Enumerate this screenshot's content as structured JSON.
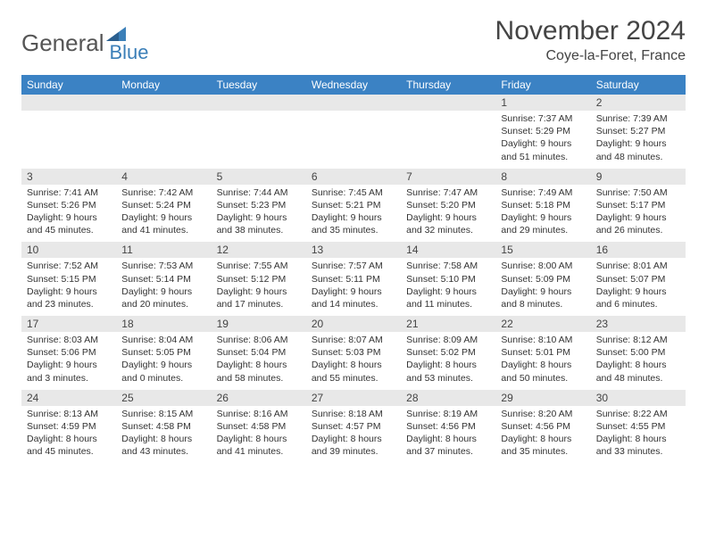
{
  "logo": {
    "text1": "General",
    "text2": "Blue"
  },
  "title": "November 2024",
  "location": "Coye-la-Foret, France",
  "colors": {
    "header_bg": "#3b82c4",
    "header_text": "#ffffff",
    "daynum_bg": "#e8e8e8",
    "text": "#333333",
    "logo_gray": "#555555",
    "logo_blue": "#3b7fb8"
  },
  "weekdays": [
    "Sunday",
    "Monday",
    "Tuesday",
    "Wednesday",
    "Thursday",
    "Friday",
    "Saturday"
  ],
  "weeks": [
    {
      "nums": [
        "",
        "",
        "",
        "",
        "",
        "1",
        "2"
      ],
      "cells": [
        {
          "sunrise": "",
          "sunset": "",
          "daylight": ""
        },
        {
          "sunrise": "",
          "sunset": "",
          "daylight": ""
        },
        {
          "sunrise": "",
          "sunset": "",
          "daylight": ""
        },
        {
          "sunrise": "",
          "sunset": "",
          "daylight": ""
        },
        {
          "sunrise": "",
          "sunset": "",
          "daylight": ""
        },
        {
          "sunrise": "Sunrise: 7:37 AM",
          "sunset": "Sunset: 5:29 PM",
          "daylight": "Daylight: 9 hours and 51 minutes."
        },
        {
          "sunrise": "Sunrise: 7:39 AM",
          "sunset": "Sunset: 5:27 PM",
          "daylight": "Daylight: 9 hours and 48 minutes."
        }
      ]
    },
    {
      "nums": [
        "3",
        "4",
        "5",
        "6",
        "7",
        "8",
        "9"
      ],
      "cells": [
        {
          "sunrise": "Sunrise: 7:41 AM",
          "sunset": "Sunset: 5:26 PM",
          "daylight": "Daylight: 9 hours and 45 minutes."
        },
        {
          "sunrise": "Sunrise: 7:42 AM",
          "sunset": "Sunset: 5:24 PM",
          "daylight": "Daylight: 9 hours and 41 minutes."
        },
        {
          "sunrise": "Sunrise: 7:44 AM",
          "sunset": "Sunset: 5:23 PM",
          "daylight": "Daylight: 9 hours and 38 minutes."
        },
        {
          "sunrise": "Sunrise: 7:45 AM",
          "sunset": "Sunset: 5:21 PM",
          "daylight": "Daylight: 9 hours and 35 minutes."
        },
        {
          "sunrise": "Sunrise: 7:47 AM",
          "sunset": "Sunset: 5:20 PM",
          "daylight": "Daylight: 9 hours and 32 minutes."
        },
        {
          "sunrise": "Sunrise: 7:49 AM",
          "sunset": "Sunset: 5:18 PM",
          "daylight": "Daylight: 9 hours and 29 minutes."
        },
        {
          "sunrise": "Sunrise: 7:50 AM",
          "sunset": "Sunset: 5:17 PM",
          "daylight": "Daylight: 9 hours and 26 minutes."
        }
      ]
    },
    {
      "nums": [
        "10",
        "11",
        "12",
        "13",
        "14",
        "15",
        "16"
      ],
      "cells": [
        {
          "sunrise": "Sunrise: 7:52 AM",
          "sunset": "Sunset: 5:15 PM",
          "daylight": "Daylight: 9 hours and 23 minutes."
        },
        {
          "sunrise": "Sunrise: 7:53 AM",
          "sunset": "Sunset: 5:14 PM",
          "daylight": "Daylight: 9 hours and 20 minutes."
        },
        {
          "sunrise": "Sunrise: 7:55 AM",
          "sunset": "Sunset: 5:12 PM",
          "daylight": "Daylight: 9 hours and 17 minutes."
        },
        {
          "sunrise": "Sunrise: 7:57 AM",
          "sunset": "Sunset: 5:11 PM",
          "daylight": "Daylight: 9 hours and 14 minutes."
        },
        {
          "sunrise": "Sunrise: 7:58 AM",
          "sunset": "Sunset: 5:10 PM",
          "daylight": "Daylight: 9 hours and 11 minutes."
        },
        {
          "sunrise": "Sunrise: 8:00 AM",
          "sunset": "Sunset: 5:09 PM",
          "daylight": "Daylight: 9 hours and 8 minutes."
        },
        {
          "sunrise": "Sunrise: 8:01 AM",
          "sunset": "Sunset: 5:07 PM",
          "daylight": "Daylight: 9 hours and 6 minutes."
        }
      ]
    },
    {
      "nums": [
        "17",
        "18",
        "19",
        "20",
        "21",
        "22",
        "23"
      ],
      "cells": [
        {
          "sunrise": "Sunrise: 8:03 AM",
          "sunset": "Sunset: 5:06 PM",
          "daylight": "Daylight: 9 hours and 3 minutes."
        },
        {
          "sunrise": "Sunrise: 8:04 AM",
          "sunset": "Sunset: 5:05 PM",
          "daylight": "Daylight: 9 hours and 0 minutes."
        },
        {
          "sunrise": "Sunrise: 8:06 AM",
          "sunset": "Sunset: 5:04 PM",
          "daylight": "Daylight: 8 hours and 58 minutes."
        },
        {
          "sunrise": "Sunrise: 8:07 AM",
          "sunset": "Sunset: 5:03 PM",
          "daylight": "Daylight: 8 hours and 55 minutes."
        },
        {
          "sunrise": "Sunrise: 8:09 AM",
          "sunset": "Sunset: 5:02 PM",
          "daylight": "Daylight: 8 hours and 53 minutes."
        },
        {
          "sunrise": "Sunrise: 8:10 AM",
          "sunset": "Sunset: 5:01 PM",
          "daylight": "Daylight: 8 hours and 50 minutes."
        },
        {
          "sunrise": "Sunrise: 8:12 AM",
          "sunset": "Sunset: 5:00 PM",
          "daylight": "Daylight: 8 hours and 48 minutes."
        }
      ]
    },
    {
      "nums": [
        "24",
        "25",
        "26",
        "27",
        "28",
        "29",
        "30"
      ],
      "cells": [
        {
          "sunrise": "Sunrise: 8:13 AM",
          "sunset": "Sunset: 4:59 PM",
          "daylight": "Daylight: 8 hours and 45 minutes."
        },
        {
          "sunrise": "Sunrise: 8:15 AM",
          "sunset": "Sunset: 4:58 PM",
          "daylight": "Daylight: 8 hours and 43 minutes."
        },
        {
          "sunrise": "Sunrise: 8:16 AM",
          "sunset": "Sunset: 4:58 PM",
          "daylight": "Daylight: 8 hours and 41 minutes."
        },
        {
          "sunrise": "Sunrise: 8:18 AM",
          "sunset": "Sunset: 4:57 PM",
          "daylight": "Daylight: 8 hours and 39 minutes."
        },
        {
          "sunrise": "Sunrise: 8:19 AM",
          "sunset": "Sunset: 4:56 PM",
          "daylight": "Daylight: 8 hours and 37 minutes."
        },
        {
          "sunrise": "Sunrise: 8:20 AM",
          "sunset": "Sunset: 4:56 PM",
          "daylight": "Daylight: 8 hours and 35 minutes."
        },
        {
          "sunrise": "Sunrise: 8:22 AM",
          "sunset": "Sunset: 4:55 PM",
          "daylight": "Daylight: 8 hours and 33 minutes."
        }
      ]
    }
  ]
}
